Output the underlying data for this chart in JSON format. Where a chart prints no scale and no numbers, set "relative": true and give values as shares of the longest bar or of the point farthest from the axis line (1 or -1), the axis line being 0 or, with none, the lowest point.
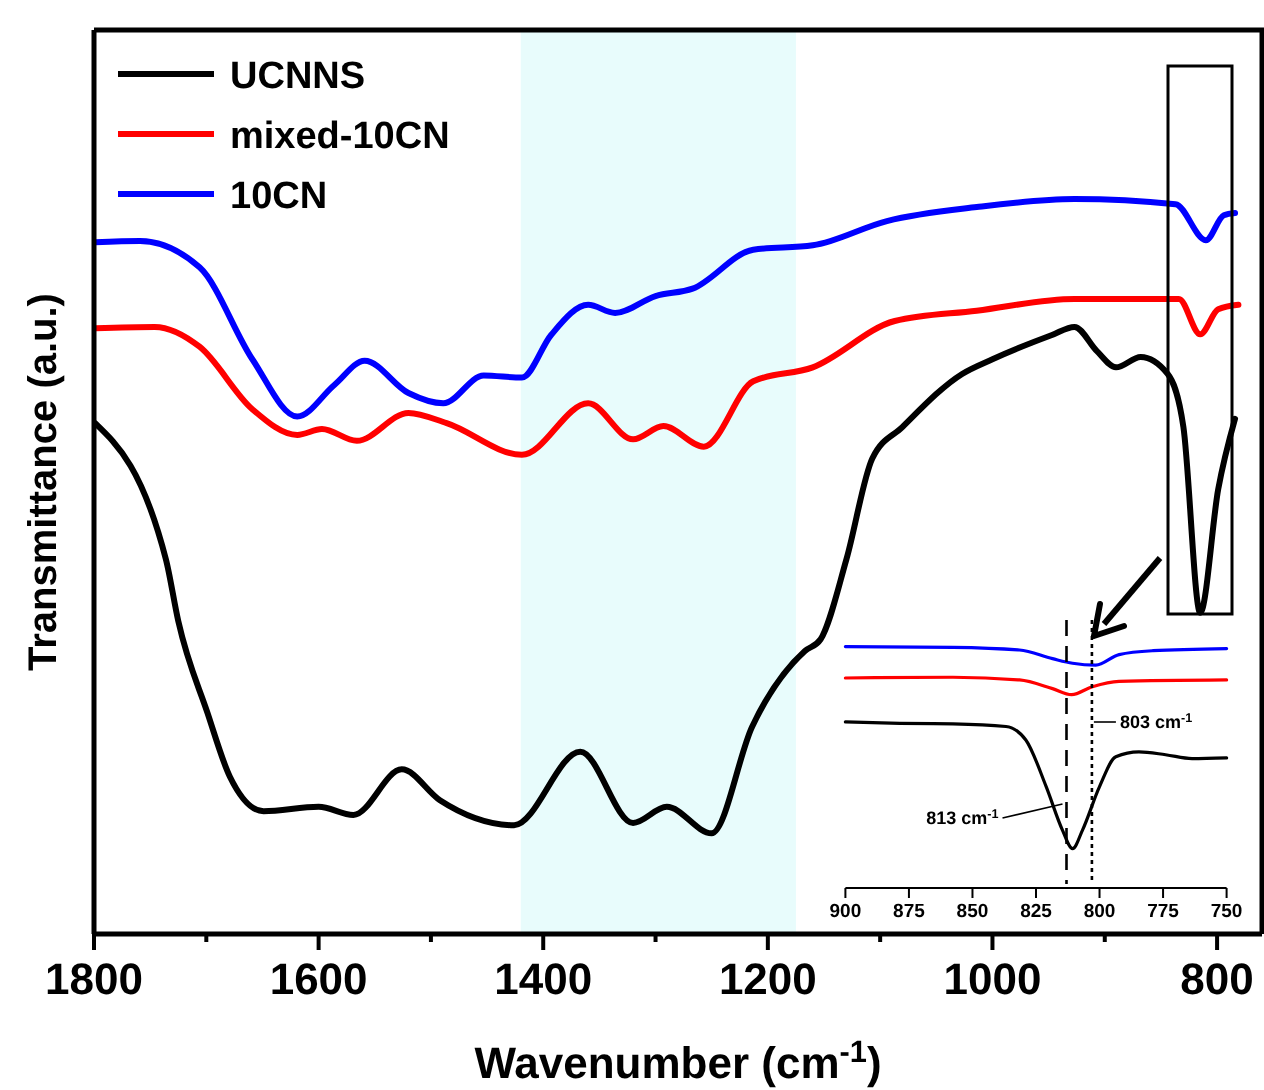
{
  "chart_data": [
    {
      "type": "line",
      "xlabel": "Wavenumber (cm$^{-1}$)",
      "ylabel": "Transmittance (a.u.)",
      "relative": true,
      "xlim": [
        1800,
        760
      ],
      "xticks": [
        1800,
        {
          "value": 1700,
          "label": null
        },
        1600,
        {
          "value": 1500,
          "label": null
        },
        1400,
        {
          "value": 1300,
          "label": null
        },
        1200,
        {
          "value": 1100,
          "label": null
        },
        1000,
        {
          "value": 900,
          "label": null
        },
        800
      ],
      "legend": "top left",
      "grid": false,
      "marker": "none",
      "line_style": "solid",
      "tick_labels": "x",
      "bands": [
        {
          "axis": "x",
          "from": 1420,
          "to": 1175,
          "color": "#e8fcfc"
        }
      ],
      "series": [
        {
          "name": "UCNNS",
          "color": "#000000",
          "x": [
            1799,
            1736,
            1725,
            1699,
            1679,
            1649,
            1600,
            1569,
            1526,
            1492,
            1426,
            1367,
            1320,
            1290,
            1250,
            1214,
            1167,
            1153,
            1130,
            1107,
            1080,
            1027,
            1000,
            947,
            927,
            907,
            890,
            868,
            844,
            830,
            815,
            799,
            784
          ],
          "values": [
            0.695,
            0.51,
            0.426,
            0.301,
            0.214,
            0.167,
            0.173,
            0.162,
            0.224,
            0.182,
            0.148,
            0.248,
            0.151,
            0.173,
            0.137,
            0.282,
            0.385,
            0.401,
            0.51,
            0.647,
            0.69,
            0.762,
            0.782,
            0.815,
            0.826,
            0.793,
            0.771,
            0.785,
            0.762,
            0.69,
            0.437,
            0.605,
            0.701
          ]
        },
        {
          "name": "mixed-10CN",
          "color": "#ff0000",
          "x": [
            1799,
            1746,
            1706,
            1659,
            1619,
            1597,
            1566,
            1520,
            1486,
            1419,
            1360,
            1320,
            1293,
            1257,
            1213,
            1160,
            1087,
            1014,
            927,
            834,
            815,
            799,
            781
          ],
          "values": [
            0.824,
            0.826,
            0.799,
            0.714,
            0.679,
            0.687,
            0.671,
            0.709,
            0.695,
            0.652,
            0.722,
            0.673,
            0.691,
            0.663,
            0.752,
            0.771,
            0.834,
            0.848,
            0.864,
            0.864,
            0.816,
            0.85,
            0.856
          ]
        },
        {
          "name": "10CN",
          "color": "#0000ff",
          "x": [
            1799,
            1759,
            1706,
            1659,
            1619,
            1586,
            1559,
            1520,
            1489,
            1453,
            1419,
            1393,
            1360,
            1336,
            1300,
            1267,
            1213,
            1160,
            1094,
            1014,
            927,
            837,
            810,
            794,
            784
          ],
          "values": [
            0.941,
            0.943,
            0.907,
            0.782,
            0.704,
            0.747,
            0.78,
            0.736,
            0.722,
            0.76,
            0.757,
            0.815,
            0.856,
            0.845,
            0.868,
            0.878,
            0.931,
            0.937,
            0.97,
            0.989,
            1.0,
            0.993,
            0.944,
            0.978,
            0.981
          ]
        }
      ]
    },
    {
      "type": "line",
      "relative": true,
      "xlim": [
        900,
        750
      ],
      "xticks": [
        900,
        875,
        850,
        825,
        800,
        775,
        750
      ],
      "tick_labels": "x",
      "marker": "none",
      "line_style": "solid",
      "ref_lines": [
        {
          "axis": "x",
          "value": 813,
          "label": "813 cm$^{-1}$",
          "line_style": "dashed",
          "color": "#000000"
        },
        {
          "axis": "x",
          "value": 803,
          "label": "803 cm$^{-1}$",
          "line_style": "dotted",
          "color": "#000000"
        }
      ],
      "series": [
        {
          "color": "#000000",
          "x": [
            900,
            878.6,
            857.7,
            836.8,
            829,
            821,
            814.6,
            810.6,
            806.7,
            800,
            793.6,
            784.5,
            774,
            763.6,
            750
          ],
          "values": [
            0.688,
            0.682,
            0.68,
            0.669,
            0.613,
            0.42,
            0.24,
            0.163,
            0.24,
            0.42,
            0.544,
            0.564,
            0.552,
            0.536,
            0.539
          ]
        },
        {
          "color": "#ff0000",
          "x": [
            900,
            857.7,
            831.5,
            818.5,
            811,
            802.8,
            792.3,
            750
          ],
          "values": [
            0.87,
            0.873,
            0.862,
            0.826,
            0.801,
            0.834,
            0.856,
            0.862
          ]
        },
        {
          "color": "#0000ff",
          "x": [
            900,
            857.7,
            831.5,
            818.5,
            810.6,
            801.5,
            792.3,
            779,
            750
          ],
          "values": [
            1.0,
            0.997,
            0.986,
            0.95,
            0.931,
            0.923,
            0.967,
            0.983,
            0.992
          ]
        }
      ]
    }
  ]
}
